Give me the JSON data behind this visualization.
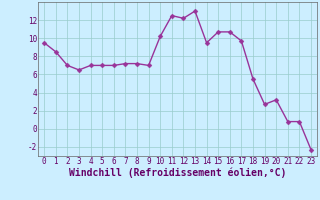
{
  "x": [
    0,
    1,
    2,
    3,
    4,
    5,
    6,
    7,
    8,
    9,
    10,
    11,
    12,
    13,
    14,
    15,
    16,
    17,
    18,
    19,
    20,
    21,
    22,
    23
  ],
  "y": [
    9.5,
    8.5,
    7.0,
    6.5,
    7.0,
    7.0,
    7.0,
    7.2,
    7.2,
    7.0,
    10.2,
    12.5,
    12.2,
    13.0,
    9.5,
    10.7,
    10.7,
    9.7,
    5.5,
    2.7,
    3.2,
    0.8,
    0.8,
    -2.3
  ],
  "line_color": "#993399",
  "marker_color": "#993399",
  "bg_color": "#cceeff",
  "grid_color": "#99cccc",
  "xlabel": "Windchill (Refroidissement éolien,°C)",
  "ylim": [
    -3,
    14
  ],
  "xlim": [
    -0.5,
    23.5
  ],
  "yticks": [
    -2,
    0,
    2,
    4,
    6,
    8,
    10,
    12
  ],
  "xticks": [
    0,
    1,
    2,
    3,
    4,
    5,
    6,
    7,
    8,
    9,
    10,
    11,
    12,
    13,
    14,
    15,
    16,
    17,
    18,
    19,
    20,
    21,
    22,
    23
  ],
  "tick_label_fontsize": 5.5,
  "xlabel_fontsize": 7.0,
  "line_width": 1.0,
  "marker_size": 2.5
}
